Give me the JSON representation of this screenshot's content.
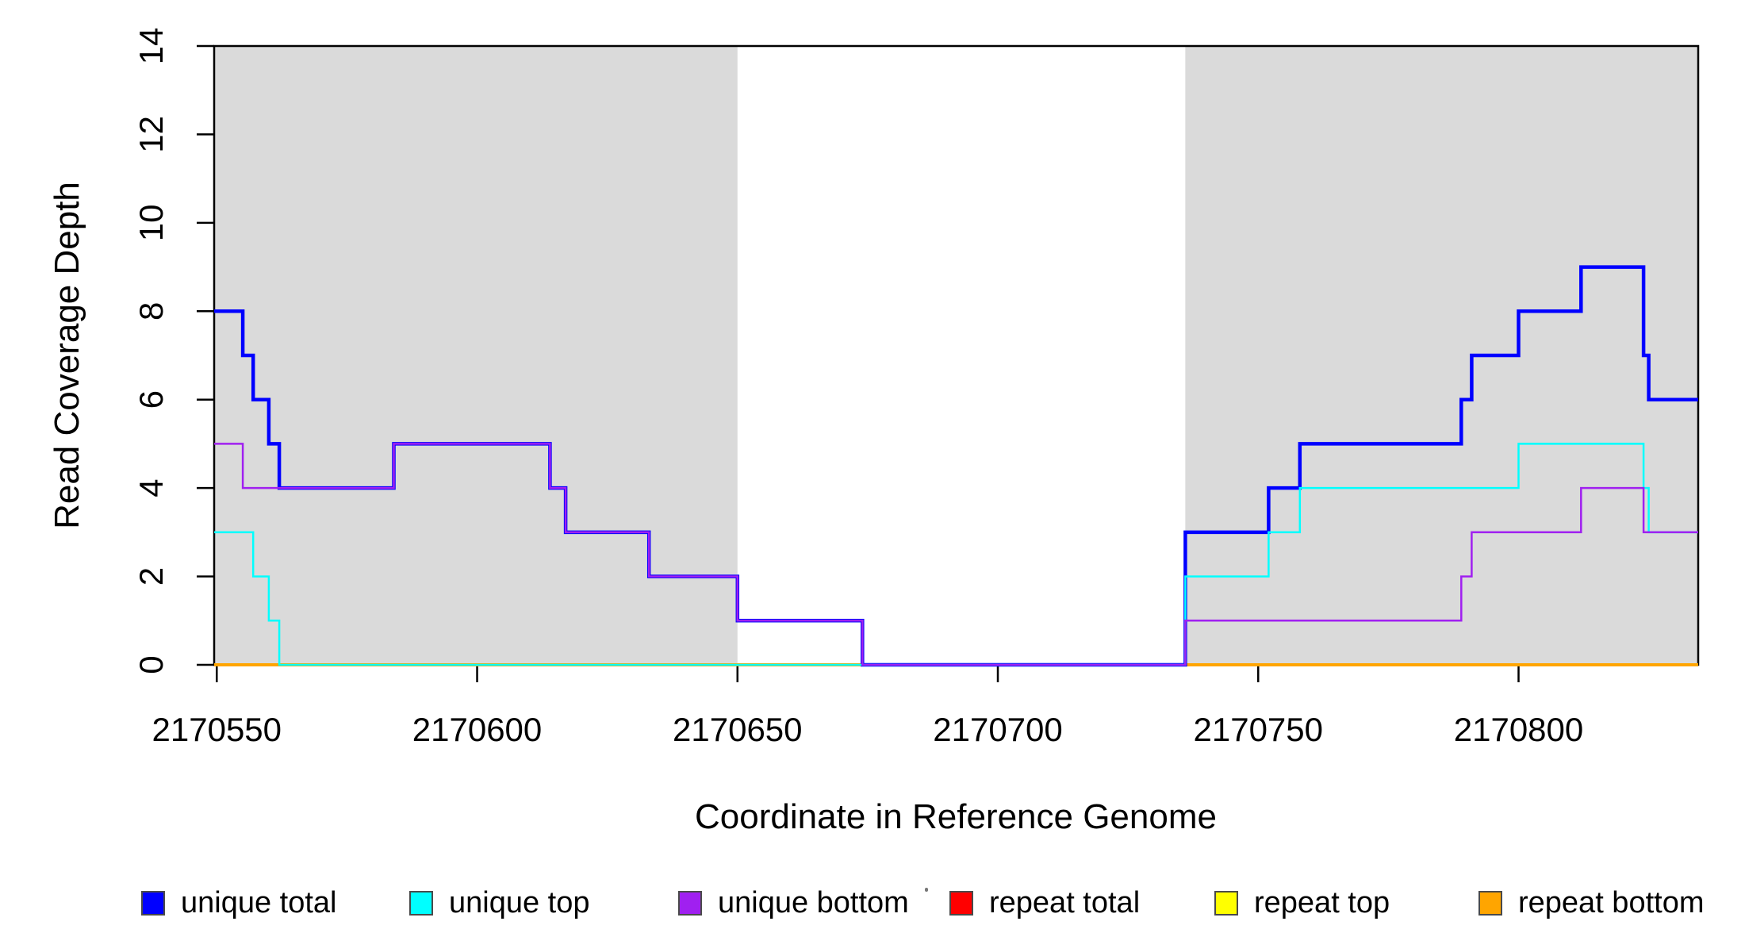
{
  "chart_data": {
    "type": "line",
    "subtype": "step-post",
    "title": "",
    "xlabel": "Coordinate in Reference Genome",
    "ylabel": "Read Coverage Depth",
    "xlim": [
      2170549.5,
      2170834.5
    ],
    "ylim": [
      0,
      14
    ],
    "x_ticks": [
      2170550,
      2170600,
      2170650,
      2170700,
      2170750,
      2170800
    ],
    "y_ticks": [
      0,
      2,
      4,
      6,
      8,
      10,
      12,
      14
    ],
    "grid": false,
    "legend_position": "bottom",
    "shaded_regions": [
      {
        "from": 2170549.5,
        "to": 2170650,
        "color": "#DADADA"
      },
      {
        "from": 2170736,
        "to": 2170834.5,
        "color": "#DADADA"
      }
    ],
    "series": [
      {
        "name": "repeat total",
        "color": "#FF0000",
        "width": 2,
        "points": [
          [
            2170549.5,
            0
          ],
          [
            2170834.5,
            0
          ]
        ]
      },
      {
        "name": "repeat top",
        "color": "#FFFF00",
        "width": 2,
        "points": [
          [
            2170549.5,
            0
          ],
          [
            2170834.5,
            0
          ]
        ]
      },
      {
        "name": "repeat bottom",
        "color": "#FFA500",
        "width": 4,
        "points": [
          [
            2170549.5,
            0
          ],
          [
            2170834.5,
            0
          ]
        ]
      },
      {
        "name": "unique total",
        "color": "#0000FF",
        "width": 4.5,
        "points": [
          [
            2170549.5,
            8
          ],
          [
            2170555,
            7
          ],
          [
            2170557,
            6
          ],
          [
            2170560,
            5
          ],
          [
            2170562,
            4
          ],
          [
            2170584,
            5
          ],
          [
            2170614,
            4
          ],
          [
            2170617,
            3
          ],
          [
            2170633,
            2
          ],
          [
            2170650,
            1
          ],
          [
            2170674,
            0
          ],
          [
            2170736,
            3
          ],
          [
            2170752,
            4
          ],
          [
            2170758,
            5
          ],
          [
            2170789,
            6
          ],
          [
            2170791,
            7
          ],
          [
            2170800,
            8
          ],
          [
            2170812,
            9
          ],
          [
            2170824,
            7
          ],
          [
            2170825,
            6
          ],
          [
            2170834.5,
            6
          ]
        ]
      },
      {
        "name": "unique top",
        "color": "#00FFFF",
        "width": 2.5,
        "points": [
          [
            2170549.5,
            3
          ],
          [
            2170557,
            2
          ],
          [
            2170560,
            1
          ],
          [
            2170562,
            0
          ],
          [
            2170736,
            2
          ],
          [
            2170752,
            3
          ],
          [
            2170758,
            4
          ],
          [
            2170800,
            5
          ],
          [
            2170824,
            4
          ],
          [
            2170825,
            3
          ],
          [
            2170834.5,
            3
          ]
        ]
      },
      {
        "name": "unique bottom",
        "color": "#A020F0",
        "width": 2.5,
        "points": [
          [
            2170549.5,
            5
          ],
          [
            2170555,
            4
          ],
          [
            2170584,
            5
          ],
          [
            2170614,
            4
          ],
          [
            2170617,
            3
          ],
          [
            2170633,
            2
          ],
          [
            2170650,
            1
          ],
          [
            2170674,
            0
          ],
          [
            2170736,
            1
          ],
          [
            2170789,
            2
          ],
          [
            2170791,
            3
          ],
          [
            2170812,
            4
          ],
          [
            2170824,
            3
          ],
          [
            2170834.5,
            3
          ]
        ]
      }
    ]
  },
  "axes": {
    "x_label": "Coordinate in Reference Genome",
    "y_label": "Read Coverage Depth",
    "x_tick_labels": [
      "2170550",
      "2170600",
      "2170650",
      "2170700",
      "2170750",
      "2170800"
    ],
    "y_tick_labels": [
      "0",
      "2",
      "4",
      "6",
      "8",
      "10",
      "12",
      "14"
    ]
  },
  "legend": {
    "items": [
      {
        "label": "unique total",
        "color": "#0000FF"
      },
      {
        "label": "unique top",
        "color": "#00FFFF"
      },
      {
        "label": "unique bottom",
        "color": "#A020F0"
      },
      {
        "label": "repeat total",
        "color": "#FF0000"
      },
      {
        "label": "repeat top",
        "color": "#FFFF00"
      },
      {
        "label": "repeat bottom",
        "color": "#FFA500"
      }
    ]
  },
  "style": {
    "plot_background": "#FFFFFF",
    "shade_color": "#DADADA",
    "box_color": "#000000",
    "text_color": "#000000"
  }
}
